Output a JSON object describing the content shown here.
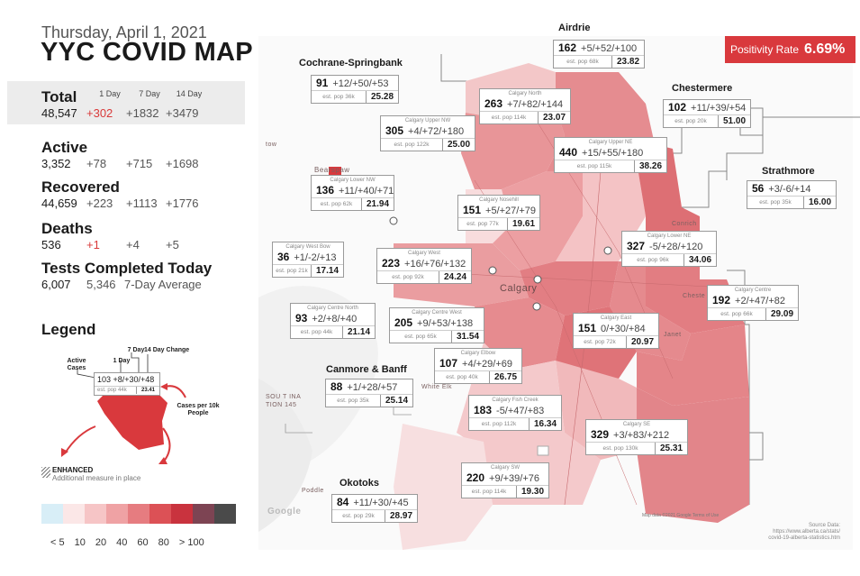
{
  "header": {
    "date": "Thursday, April 1, 2021",
    "title": "YYC COVID MAP"
  },
  "columns": {
    "day1": "1 Day",
    "day7": "7 Day",
    "day14": "14 Day"
  },
  "stats": {
    "total": {
      "label": "Total",
      "value": "48,547",
      "d1": "+302",
      "d7": "+1832",
      "d14": "+3479"
    },
    "active": {
      "label": "Active",
      "value": "3,352",
      "d1": "+78",
      "d7": "+715",
      "d14": "+1698"
    },
    "recovered": {
      "label": "Recovered",
      "value": "44,659",
      "d1": "+223",
      "d7": "+1113",
      "d14": "+1776"
    },
    "deaths": {
      "label": "Deaths",
      "value": "536",
      "d1": "+1",
      "d7": "+4",
      "d14": "+5"
    },
    "tests": {
      "label": "Tests Completed Today",
      "value": "6,007",
      "avg": "5,346",
      "avg_label": "7-Day Average"
    }
  },
  "legend": {
    "title": "Legend",
    "active_cases": "Active Cases",
    "day1": "1 Day",
    "day7": "7 Day",
    "day14": "14 Day Change",
    "per10k": "Cases per 10k People",
    "example_top": "103 +8/+30/+48",
    "example_pop": "est. pop 44k",
    "example_rate": "23.41",
    "enhanced": "ENHANCED",
    "enhanced_desc": "Additional measure in place",
    "scale_colors": [
      "#d8eef7",
      "#fbe7e7",
      "#f6c5c6",
      "#efa2a4",
      "#e67c80",
      "#dc5156",
      "#c9333e",
      "#7d4453",
      "#4a4a4a"
    ],
    "scale_labels": [
      "< 5",
      "10",
      "20",
      "40",
      "60",
      "80",
      "> 100"
    ]
  },
  "positivity": {
    "label": "Positivity Rate",
    "value": "6.69%"
  },
  "map_labels": {
    "calgary": "Calgary",
    "bearspaw": "Bearspaw",
    "conrich": "Conrich",
    "chestermere_town": "Cheste",
    "janet": "Janet",
    "poddle": "Poddle",
    "white_elk": "White Elk",
    "south_india": "SOU T INA",
    "tion145": "TION 145",
    "tow": "tow",
    "google": "Google",
    "attribution": "Map data ©2021 Google    Terms of Use"
  },
  "source": {
    "title": "Source Data:",
    "line1": "https://www.alberta.ca/stats/",
    "line2": "covid-19-alberta-statistics.htm"
  },
  "areas": [
    {
      "id": "airdrie",
      "outer": "Airdrie",
      "top": "162",
      "change": "+5/+52/+100",
      "pop": "est. pop 68k",
      "rate": "23.82"
    },
    {
      "id": "cochrane",
      "outer": "Cochrane-Springbank",
      "top": "91",
      "change": "+12/+50/+53",
      "pop": "est. pop 36k",
      "rate": "25.28"
    },
    {
      "id": "calgary-north",
      "name": "Calgary North",
      "top": "263",
      "change": "+7/+82/+144",
      "pop": "est. pop 114k",
      "rate": "23.07"
    },
    {
      "id": "calgary-upper-nw",
      "name": "Calgary Upper NW",
      "top": "305",
      "change": "+4/+72/+180",
      "pop": "est. pop 122k",
      "rate": "25.00"
    },
    {
      "id": "chestermere",
      "outer": "Chestermere",
      "top": "102",
      "change": "+11/+39/+54",
      "pop": "est. pop 20k",
      "rate": "51.00"
    },
    {
      "id": "calgary-upper-ne",
      "name": "Calgary Upper NE",
      "top": "440",
      "change": "+15/+55/+180",
      "pop": "est. pop 115k",
      "rate": "38.26"
    },
    {
      "id": "strathmore",
      "outer": "Strathmore",
      "top": "56",
      "change": "+3/-6/+14",
      "pop": "est. pop 35k",
      "rate": "16.00"
    },
    {
      "id": "calgary-lower-nw",
      "name": "Calgary Lower NW",
      "top": "136",
      "change": "+11/+40/+71",
      "pop": "est. pop 62k",
      "rate": "21.94"
    },
    {
      "id": "calgary-nosehill",
      "name": "Calgary Nosehill",
      "top": "151",
      "change": "+5/+27/+79",
      "pop": "est. pop 77k",
      "rate": "19.61"
    },
    {
      "id": "calgary-west-bow",
      "name": "Calgary West Bow",
      "top": "36",
      "change": "+1/-2/+13",
      "pop": "est. pop 21k",
      "rate": "17.14"
    },
    {
      "id": "calgary-west",
      "name": "Calgary West",
      "top": "223",
      "change": "+16/+76/+132",
      "pop": "est. pop 92k",
      "rate": "24.24"
    },
    {
      "id": "calgary-lower-ne",
      "name": "Calgary Lower NE",
      "top": "327",
      "change": "-5/+28/+120",
      "pop": "est. pop 96k",
      "rate": "34.06"
    },
    {
      "id": "calgary-centre",
      "name": "Calgary Centre",
      "top": "192",
      "change": "+2/+47/+82",
      "pop": "est. pop 66k",
      "rate": "29.09"
    },
    {
      "id": "calgary-centre-north",
      "name": "Calgary Centre North",
      "top": "93",
      "change": "+2/+8/+40",
      "pop": "est. pop 44k",
      "rate": "21.14"
    },
    {
      "id": "calgary-centre-west",
      "name": "Calgary Centre West",
      "top": "205",
      "change": "+9/+53/+138",
      "pop": "est. pop 65k",
      "rate": "31.54"
    },
    {
      "id": "calgary-east",
      "name": "Calgary East",
      "top": "151",
      "change": "0/+30/+84",
      "pop": "est. pop 72k",
      "rate": "20.97"
    },
    {
      "id": "calgary-elbow",
      "name": "Calgary Elbow",
      "top": "107",
      "change": "+4/+29/+69",
      "pop": "est. pop 40k",
      "rate": "26.75"
    },
    {
      "id": "canmore",
      "outer": "Canmore & Banff",
      "top": "88",
      "change": "+1/+28/+57",
      "pop": "est. pop 35k",
      "rate": "25.14"
    },
    {
      "id": "calgary-fish-creek",
      "name": "Calgary Fish Creek",
      "top": "183",
      "change": "-5/+47/+83",
      "pop": "est. pop 112k",
      "rate": "16.34"
    },
    {
      "id": "calgary-se",
      "name": "Calgary SE",
      "top": "329",
      "change": "+3/+83/+212",
      "pop": "est. pop 130k",
      "rate": "25.31"
    },
    {
      "id": "calgary-sw",
      "name": "Calgary SW",
      "top": "220",
      "change": "+9/+39/+76",
      "pop": "est. pop 114k",
      "rate": "19.30"
    },
    {
      "id": "okotoks",
      "outer": "Okotoks",
      "top": "84",
      "change": "+11/+30/+45",
      "pop": "est. pop 29k",
      "rate": "28.97"
    }
  ]
}
